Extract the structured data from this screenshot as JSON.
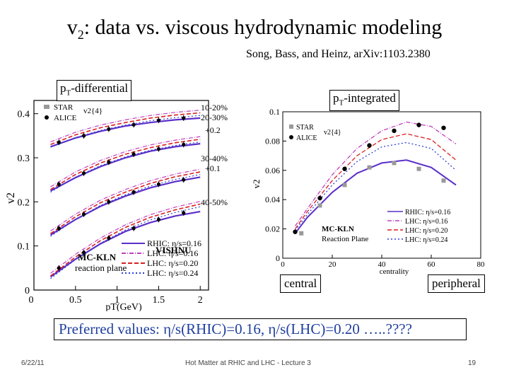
{
  "slide": {
    "title_pre": "v",
    "title_sub": "2",
    "title_post": ": data vs. viscous hydrodynamic modeling",
    "citation": "Song, Bass, and Heinz, arXiv:1103.2380",
    "box_left_pre": "p",
    "box_left_sub": "T",
    "box_left_post": "-differential",
    "box_right_pre": "p",
    "box_right_sub": "T",
    "box_right_post": "-integrated",
    "box_central": "central",
    "box_peripheral": "peripheral",
    "preferred_label": "Preferred values: ",
    "preferred_values": "η/s(RHIC)=0.16, η/s(LHC)=0.20 …..????",
    "footer_date": "6/22/11",
    "footer_center": "Hot Matter at RHIC and LHC - Lecture 3",
    "footer_page": "19"
  },
  "left_plot": {
    "ylabel": "v2",
    "xlabel": "pT(GeV)",
    "yticks": [
      "0.4",
      "0.3",
      "0.2",
      "0.1",
      "0"
    ],
    "xticks": [
      "0.5",
      "1",
      "1.5",
      "2"
    ],
    "legend_top": [
      "STAR",
      "ALICE"
    ],
    "legend_top_title": "v2{4}",
    "centrality_labels": [
      "10-20%",
      "20-30%",
      "+0.2",
      "30-40%",
      "+0.1",
      "40-50%"
    ],
    "model_label": "VISHNU",
    "model_label2": "MC-KLN",
    "model_label3": "reaction plane",
    "legend_bottom": [
      "RHIC: η/s=0.16",
      "LHC: η/s=0.16",
      "LHC: η/s=0.20",
      "LHC: η/s=0.24"
    ]
  },
  "right_plot": {
    "ylabel": "v2",
    "xlabel": "centrality",
    "yticks": [
      "0.1",
      "0.08",
      "0.06",
      "0.04",
      "0.02",
      "0"
    ],
    "xticks": [
      "0",
      "20",
      "40",
      "60",
      "80"
    ],
    "legend_top": [
      "STAR",
      "ALICE"
    ],
    "legend_top_title": "v2{4}",
    "model_label": "MC-KLN",
    "model_label2": "Reaction Plane",
    "legend_bottom": [
      "RHIC: η/s=0.16",
      "LHC: η/s=0.16",
      "LHC: η/s=0.20",
      "LHC: η/s=0.24"
    ]
  },
  "colors": {
    "rhic": "#5b2fc9",
    "lhc016": "#c040c0",
    "lhc020": "#d81f1f",
    "lhc024": "#2e3fd6",
    "star": "#999999",
    "alice": "#000000"
  },
  "chart_data": [
    {
      "type": "line",
      "title": "pT-differential",
      "xlabel": "pT (GeV)",
      "ylabel": "v2",
      "xlim": [
        0,
        2.1
      ],
      "ylim": [
        0,
        0.43
      ],
      "series": [
        {
          "name": "10-20% RHIC η/s=0.16",
          "x": [
            0.2,
            0.5,
            0.8,
            1.1,
            1.4,
            1.7,
            2.0
          ],
          "values": [
            0.325,
            0.345,
            0.36,
            0.372,
            0.38,
            0.386,
            0.39
          ]
        },
        {
          "name": "10-20% LHC η/s=0.20",
          "x": [
            0.2,
            0.5,
            0.8,
            1.1,
            1.4,
            1.7,
            2.0
          ],
          "values": [
            0.33,
            0.352,
            0.368,
            0.38,
            0.39,
            0.397,
            0.402
          ]
        },
        {
          "name": "20-30% +0.2 RHIC η/s=0.16",
          "x": [
            0.2,
            0.5,
            0.8,
            1.1,
            1.4,
            1.7,
            2.0
          ],
          "values": [
            0.225,
            0.255,
            0.28,
            0.3,
            0.315,
            0.325,
            0.332
          ]
        },
        {
          "name": "20-30% +0.2 LHC η/s=0.20",
          "x": [
            0.2,
            0.5,
            0.8,
            1.1,
            1.4,
            1.7,
            2.0
          ],
          "values": [
            0.228,
            0.262,
            0.288,
            0.308,
            0.323,
            0.334,
            0.342
          ]
        },
        {
          "name": "30-40% +0.1 RHIC η/s=0.16",
          "x": [
            0.2,
            0.5,
            0.8,
            1.1,
            1.4,
            1.7,
            2.0
          ],
          "values": [
            0.125,
            0.16,
            0.19,
            0.213,
            0.232,
            0.246,
            0.256
          ]
        },
        {
          "name": "30-40% +0.1 LHC η/s=0.20",
          "x": [
            0.2,
            0.5,
            0.8,
            1.1,
            1.4,
            1.7,
            2.0
          ],
          "values": [
            0.128,
            0.166,
            0.198,
            0.222,
            0.242,
            0.257,
            0.268
          ]
        },
        {
          "name": "40-50% RHIC η/s=0.16",
          "x": [
            0.2,
            0.5,
            0.8,
            1.1,
            1.4,
            1.7,
            2.0
          ],
          "values": [
            0.03,
            0.07,
            0.105,
            0.133,
            0.153,
            0.168,
            0.178
          ]
        },
        {
          "name": "40-50% LHC η/s=0.20",
          "x": [
            0.2,
            0.5,
            0.8,
            1.1,
            1.4,
            1.7,
            2.0
          ],
          "values": [
            0.032,
            0.075,
            0.112,
            0.142,
            0.165,
            0.182,
            0.195
          ]
        }
      ],
      "points": {
        "ALICE": [
          {
            "x": 0.3,
            "y": 0.335
          },
          {
            "x": 0.6,
            "y": 0.35
          },
          {
            "x": 0.9,
            "y": 0.365
          },
          {
            "x": 1.2,
            "y": 0.375
          },
          {
            "x": 1.5,
            "y": 0.385
          },
          {
            "x": 1.8,
            "y": 0.39
          },
          {
            "x": 0.3,
            "y": 0.24
          },
          {
            "x": 0.6,
            "y": 0.265
          },
          {
            "x": 0.9,
            "y": 0.29
          },
          {
            "x": 1.2,
            "y": 0.308
          },
          {
            "x": 1.5,
            "y": 0.32
          },
          {
            "x": 1.8,
            "y": 0.33
          },
          {
            "x": 0.3,
            "y": 0.14
          },
          {
            "x": 0.6,
            "y": 0.172
          },
          {
            "x": 0.9,
            "y": 0.2
          },
          {
            "x": 1.2,
            "y": 0.222
          },
          {
            "x": 1.5,
            "y": 0.24
          },
          {
            "x": 1.8,
            "y": 0.25
          },
          {
            "x": 0.3,
            "y": 0.05
          },
          {
            "x": 0.6,
            "y": 0.085
          },
          {
            "x": 0.9,
            "y": 0.118
          },
          {
            "x": 1.2,
            "y": 0.14
          },
          {
            "x": 1.5,
            "y": 0.16
          },
          {
            "x": 1.8,
            "y": 0.175
          }
        ]
      }
    },
    {
      "type": "line",
      "title": "pT-integrated",
      "xlabel": "centrality",
      "ylabel": "v2",
      "xlim": [
        0,
        80
      ],
      "ylim": [
        0,
        0.1
      ],
      "series": [
        {
          "name": "RHIC: η/s=0.16",
          "x": [
            5,
            10,
            20,
            30,
            40,
            50,
            60,
            70
          ],
          "values": [
            0.017,
            0.028,
            0.045,
            0.058,
            0.065,
            0.067,
            0.062,
            0.05
          ]
        },
        {
          "name": "LHC: η/s=0.16",
          "x": [
            5,
            10,
            20,
            30,
            40,
            50,
            60,
            70
          ],
          "values": [
            0.022,
            0.034,
            0.057,
            0.075,
            0.087,
            0.093,
            0.09,
            0.078
          ]
        },
        {
          "name": "LHC: η/s=0.20",
          "x": [
            5,
            10,
            20,
            30,
            40,
            50,
            60,
            70
          ],
          "values": [
            0.02,
            0.032,
            0.053,
            0.07,
            0.081,
            0.085,
            0.081,
            0.067
          ]
        },
        {
          "name": "LHC: η/s=0.24",
          "x": [
            5,
            10,
            20,
            30,
            40,
            50,
            60,
            70
          ],
          "values": [
            0.019,
            0.03,
            0.05,
            0.066,
            0.076,
            0.079,
            0.075,
            0.06
          ]
        }
      ],
      "points": {
        "STAR": [
          {
            "x": 7.5,
            "y": 0.017
          },
          {
            "x": 15,
            "y": 0.036
          },
          {
            "x": 25,
            "y": 0.05
          },
          {
            "x": 35,
            "y": 0.062
          },
          {
            "x": 45,
            "y": 0.065
          },
          {
            "x": 55,
            "y": 0.061
          },
          {
            "x": 65,
            "y": 0.053
          }
        ],
        "ALICE": [
          {
            "x": 5,
            "y": 0.018
          },
          {
            "x": 15,
            "y": 0.041
          },
          {
            "x": 25,
            "y": 0.061
          },
          {
            "x": 35,
            "y": 0.077
          },
          {
            "x": 45,
            "y": 0.087
          },
          {
            "x": 55,
            "y": 0.091
          },
          {
            "x": 65,
            "y": 0.089
          }
        ]
      }
    }
  ]
}
